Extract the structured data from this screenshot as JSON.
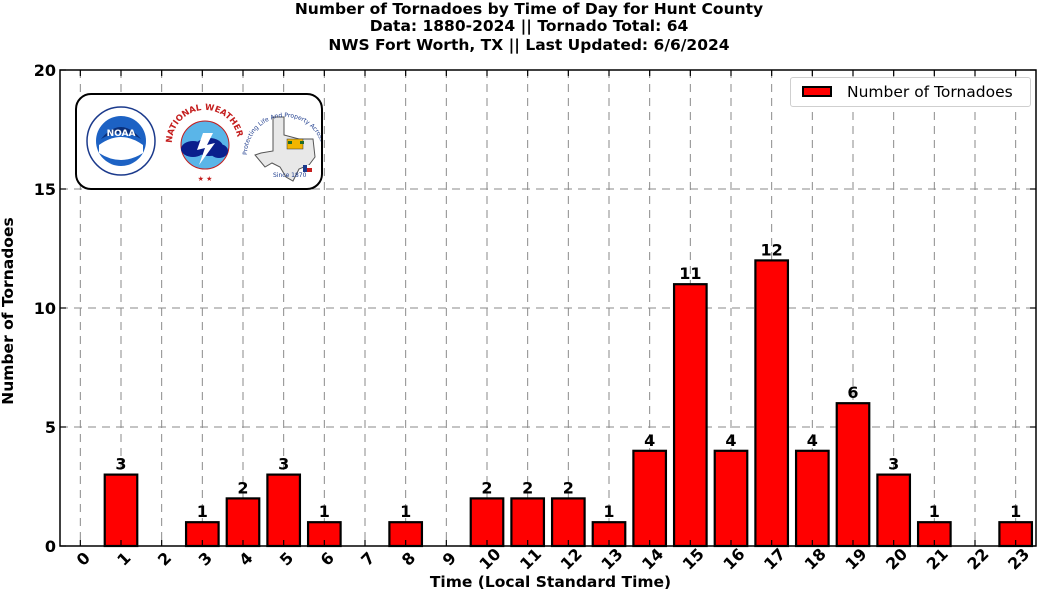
{
  "header": {
    "title_line1": "Number of Tornadoes by Time of Day for Hunt County",
    "title_line2": "Data: 1880-2024 || Tornado Total: 64",
    "title_line3": "NWS Fort Worth, TX || Last Updated: 6/6/2024"
  },
  "logos": {
    "noaa_text": "NOAA",
    "nws_arc_text": "NATIONAL WEATHER SERVICE",
    "texas_since": "Since 1870",
    "texas_arc_text": "Protecting Life And Property Across North Texas"
  },
  "chart_data": {
    "type": "bar",
    "title": "Number of Tornadoes by Time of Day for Hunt County",
    "subtitle": [
      "Data: 1880-2024 || Tornado Total: 64",
      "NWS Fort Worth, TX || Last Updated: 6/6/2024"
    ],
    "xlabel": "Time (Local Standard Time)",
    "ylabel": "Number of Tornadoes",
    "categories": [
      "0",
      "1",
      "2",
      "3",
      "4",
      "5",
      "6",
      "7",
      "8",
      "9",
      "10",
      "11",
      "12",
      "13",
      "14",
      "15",
      "16",
      "17",
      "18",
      "19",
      "20",
      "21",
      "22",
      "23"
    ],
    "series": [
      {
        "name": "Number of Tornadoes",
        "values": [
          0,
          3,
          0,
          1,
          2,
          3,
          1,
          0,
          1,
          0,
          2,
          2,
          2,
          1,
          4,
          11,
          4,
          12,
          4,
          6,
          3,
          1,
          0,
          1
        ]
      }
    ],
    "ylim": [
      0,
      20
    ],
    "yticks": [
      0,
      5,
      10,
      15,
      20
    ],
    "grid": true,
    "grid_style": "dashed",
    "legend_position": "top-right",
    "bar_color": "#ff0000",
    "edge_color": "#000000",
    "data_labels": "nonzero bars"
  }
}
